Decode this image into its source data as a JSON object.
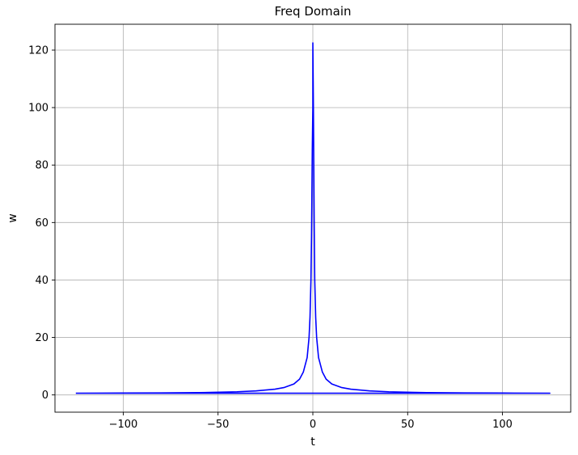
{
  "chart_data": {
    "type": "line",
    "title": "Freq Domain",
    "xlabel": "t",
    "ylabel": "w",
    "xlim": [
      -136,
      136
    ],
    "ylim": [
      -6,
      129
    ],
    "xticks": [
      -100,
      -50,
      0,
      50,
      100
    ],
    "xtick_labels": [
      "−100",
      "−50",
      "0",
      "50",
      "100"
    ],
    "yticks": [
      0,
      20,
      40,
      60,
      80,
      100,
      120
    ],
    "ytick_labels": [
      "0",
      "20",
      "40",
      "60",
      "80",
      "100",
      "120"
    ],
    "grid": true,
    "colors": {
      "line": "#0000ff",
      "grid": "#b0b0b0",
      "axes": "#000000"
    },
    "series": [
      {
        "x": [
          -125,
          -100,
          -80,
          -60,
          -40,
          -30,
          -20,
          -15,
          -10,
          -7,
          -5,
          -3,
          -2,
          -1.5,
          -1,
          -0.7,
          -0.5,
          -0.3,
          0,
          0,
          0.3,
          0.5,
          0.7,
          1,
          1.5,
          2,
          3,
          5,
          7,
          10,
          15,
          20,
          30,
          40,
          60,
          80,
          100,
          125,
          125,
          100,
          50,
          0,
          -50,
          -100,
          -125
        ],
        "y": [
          0.6,
          0.65,
          0.7,
          0.8,
          1.1,
          1.4,
          2.0,
          2.6,
          3.8,
          5.5,
          8.0,
          13.0,
          20.0,
          27.0,
          40.0,
          55.0,
          70.0,
          85.0,
          100.0,
          122.5,
          100.0,
          80.0,
          60.0,
          40.0,
          27.0,
          20.0,
          13.0,
          8.0,
          5.5,
          3.8,
          2.6,
          2.0,
          1.4,
          1.1,
          0.8,
          0.7,
          0.65,
          0.6,
          0.6,
          0.6,
          0.6,
          0.6,
          0.6,
          0.6,
          0.6
        ]
      }
    ]
  }
}
